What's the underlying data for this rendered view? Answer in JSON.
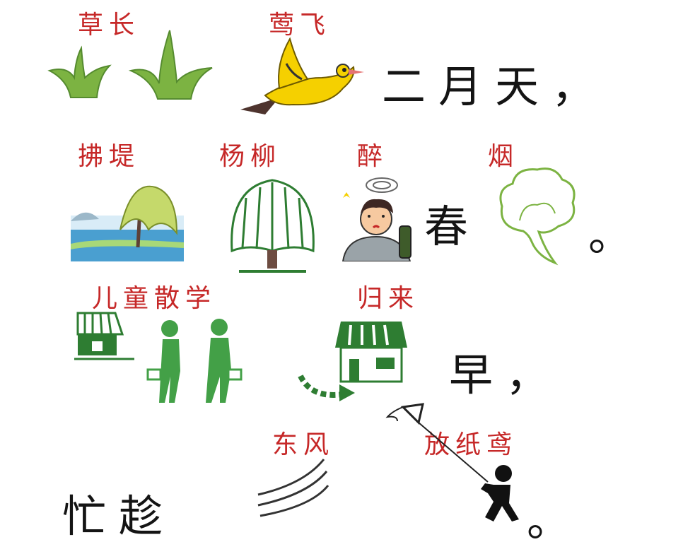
{
  "colors": {
    "label": "#c62828",
    "text": "#141414",
    "green": "#2e7d32",
    "leaf": "#7cb342",
    "yellow": "#f5d000"
  },
  "line1": {
    "label_grass": "草长",
    "label_oriole": "莺飞",
    "text": "二月天，",
    "icons": [
      "grass-icon",
      "oriole-bird-icon"
    ]
  },
  "line2": {
    "label_brush": "拂堤",
    "label_willow": "杨柳",
    "label_drunk": "醉",
    "label_smoke": "烟",
    "text_spring": "春",
    "text_end": "。",
    "icons": [
      "willow-by-lake-icon",
      "willow-tree-icon",
      "drunk-man-icon",
      "smoke-icon"
    ]
  },
  "line3": {
    "label_children": "儿童散学",
    "label_return": "归来",
    "text": "早，",
    "icons": [
      "school-building-icon",
      "walking-children-icon",
      "house-icon",
      "return-arrow-icon"
    ]
  },
  "line4": {
    "label_wind": "东风",
    "label_kite": "放纸鸢",
    "text_busy": "忙趁",
    "text_end": "。",
    "icons": [
      "wind-lines-icon",
      "kite-runner-icon"
    ]
  }
}
